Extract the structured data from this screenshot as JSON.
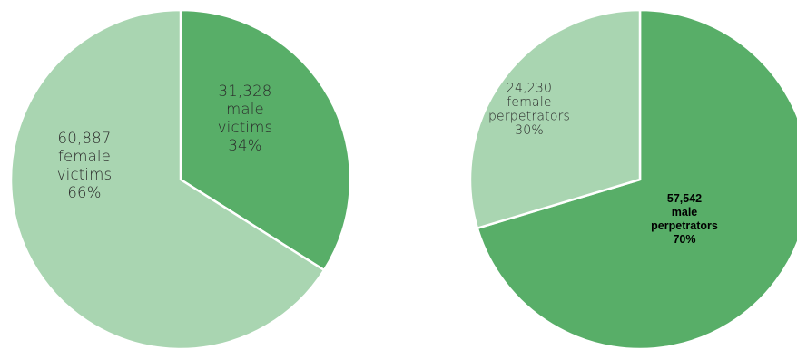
{
  "colors": {
    "dark_green": "#58ae68",
    "light_green": "#a9d5b1",
    "separator": "#ffffff",
    "label_text": "#2a2a2a",
    "label_text_bold": "#000000"
  },
  "chart_data": [
    {
      "type": "pie",
      "title": "",
      "start_angle_deg": 0,
      "direction": "clockwise",
      "slices": [
        {
          "category": "male victims",
          "value": 31328,
          "percent": 34,
          "color": "#58ae68",
          "label_lines": [
            "31,328",
            "male",
            "victims",
            "34%"
          ],
          "label_style": "light"
        },
        {
          "category": "female victims",
          "value": 60887,
          "percent": 66,
          "color": "#a9d5b1",
          "label_lines": [
            "60,887",
            "female",
            "victims",
            "66%"
          ],
          "label_style": "light"
        }
      ]
    },
    {
      "type": "pie",
      "title": "",
      "start_angle_deg": 0,
      "direction": "clockwise",
      "slices": [
        {
          "category": "male perpetrators",
          "value": 57542,
          "percent": 70,
          "color": "#58ae68",
          "label_lines": [
            "57,542",
            "male",
            "perpetrators",
            "70%"
          ],
          "label_style": "bold"
        },
        {
          "category": "female perpetrators",
          "value": 24230,
          "percent": 30,
          "color": "#a9d5b1",
          "label_lines": [
            "24,230",
            "female",
            "perpetrators",
            "30%"
          ],
          "label_style": "light"
        }
      ]
    }
  ]
}
